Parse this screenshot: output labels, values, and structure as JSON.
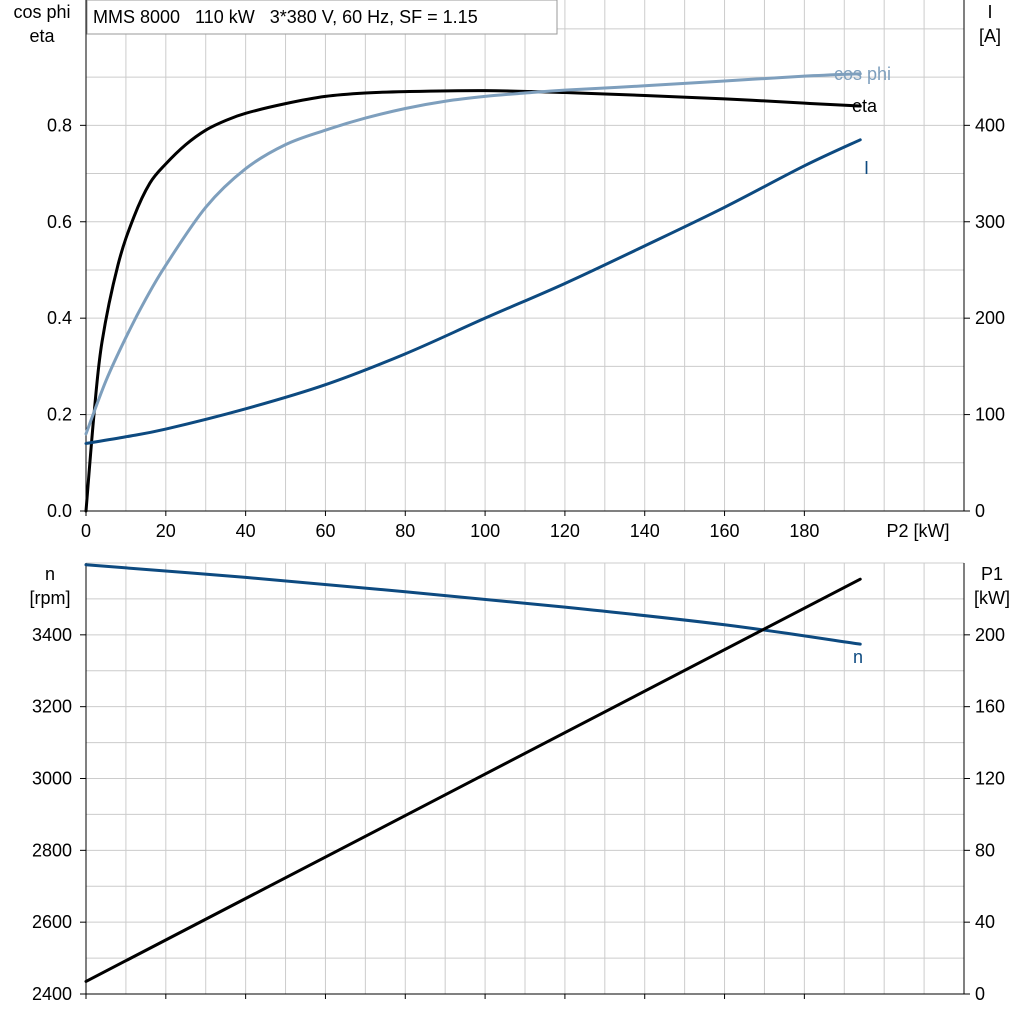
{
  "title": "MMS 8000   110 kW   3*380 V, 60 Hz, SF = 1.15",
  "colors": {
    "black": "#000000",
    "dark_blue": "#0d4a80",
    "light_blue": "#7e9fbd",
    "grid": "#cccccc"
  },
  "chart_data": [
    {
      "type": "line",
      "grid": true,
      "xlabel": "P2 [kW]",
      "xlim": [
        0,
        220
      ],
      "xticks": [
        0,
        20,
        40,
        60,
        80,
        100,
        120,
        140,
        160,
        180
      ],
      "xtick_labels": [
        "0",
        "20",
        "40",
        "60",
        "80",
        "100",
        "120",
        "140",
        "160",
        "180"
      ],
      "y_left": {
        "label_lines": [
          "cos phi",
          "eta"
        ],
        "lim": [
          0,
          1.06
        ],
        "ticks": [
          0,
          0.2,
          0.4,
          0.6,
          0.8
        ],
        "tick_labels": [
          "0.0",
          "0.2",
          "0.4",
          "0.6",
          "0.8"
        ]
      },
      "y_right": {
        "label_lines": [
          "I",
          "[A]"
        ],
        "lim": [
          0,
          530
        ],
        "ticks": [
          0,
          100,
          200,
          300,
          400
        ],
        "tick_labels": [
          "0",
          "100",
          "200",
          "300",
          "400"
        ]
      },
      "series": [
        {
          "name": "eta",
          "axis": "left",
          "color": "#000000",
          "x": [
            0,
            2,
            4,
            8,
            12,
            16,
            20,
            25,
            30,
            35,
            40,
            50,
            60,
            70,
            80,
            100,
            120,
            140,
            160,
            180,
            194
          ],
          "y": [
            0,
            0.2,
            0.35,
            0.51,
            0.61,
            0.68,
            0.72,
            0.76,
            0.79,
            0.81,
            0.825,
            0.845,
            0.86,
            0.867,
            0.87,
            0.872,
            0.868,
            0.862,
            0.855,
            0.846,
            0.84
          ]
        },
        {
          "name": "cos phi",
          "axis": "left",
          "color": "#7e9fbd",
          "x": [
            0,
            5,
            10,
            15,
            20,
            30,
            40,
            50,
            60,
            70,
            80,
            90,
            100,
            110,
            120,
            140,
            160,
            180,
            194
          ],
          "y": [
            0.16,
            0.27,
            0.36,
            0.44,
            0.51,
            0.63,
            0.71,
            0.76,
            0.79,
            0.815,
            0.835,
            0.85,
            0.86,
            0.867,
            0.873,
            0.882,
            0.892,
            0.902,
            0.907
          ]
        },
        {
          "name": "I",
          "axis": "right",
          "color": "#0d4a80",
          "x": [
            0,
            10,
            20,
            40,
            60,
            80,
            100,
            120,
            140,
            160,
            180,
            194
          ],
          "y": [
            70,
            77,
            85,
            106,
            131,
            163,
            200,
            236,
            275,
            315,
            358,
            385
          ]
        }
      ]
    },
    {
      "type": "line",
      "grid": true,
      "xlabel": "",
      "xlim": [
        0,
        220
      ],
      "xticks": [
        0,
        20,
        40,
        60,
        80,
        100,
        120,
        140,
        160,
        180
      ],
      "y_left": {
        "label_lines": [
          "n",
          "[rpm]"
        ],
        "lim": [
          2400,
          3600
        ],
        "ticks": [
          2400,
          2600,
          2800,
          3000,
          3200,
          3400
        ],
        "tick_labels": [
          "2400",
          "2600",
          "2800",
          "3000",
          "3200",
          "3400"
        ]
      },
      "y_right": {
        "label_lines": [
          "P1",
          "[kW]"
        ],
        "lim": [
          0,
          240
        ],
        "ticks": [
          0,
          40,
          80,
          120,
          160,
          200
        ],
        "tick_labels": [
          "0",
          "40",
          "80",
          "120",
          "160",
          "200"
        ]
      },
      "series": [
        {
          "name": "n",
          "axis": "left",
          "color": "#0d4a80",
          "x": [
            0,
            40,
            80,
            120,
            160,
            194
          ],
          "y": [
            3595,
            3560,
            3520,
            3477,
            3428,
            3374
          ]
        },
        {
          "name": "",
          "axis": "right",
          "color": "#000000",
          "x": [
            0,
            194
          ],
          "y": [
            7,
            231
          ]
        }
      ]
    }
  ]
}
